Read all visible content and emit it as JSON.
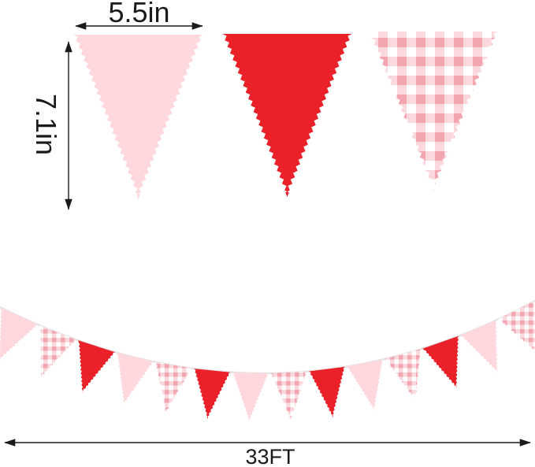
{
  "diagram": {
    "background": "#ffffff",
    "measurements": {
      "flag_width": "5.5in",
      "flag_height": "7.1in",
      "banner_length": "33FT"
    },
    "sample_flags": [
      {
        "label": "pink solid pennant",
        "style": "pink"
      },
      {
        "label": "red solid pennant",
        "style": "red"
      },
      {
        "label": "pink gingham pennant",
        "style": "gingham"
      }
    ],
    "banner": {
      "flag_count": 14,
      "sequence": [
        "pink",
        "gingham",
        "red",
        "pink",
        "gingham",
        "red",
        "pink",
        "gingham",
        "red",
        "pink",
        "gingham",
        "red",
        "pink",
        "gingham"
      ]
    },
    "colors": {
      "pink": "#ffd8dd",
      "red": "#ea2128",
      "gingham_light": "#fbd8dd",
      "gingham_dark": "#f3a6b0",
      "gingham_bg": "#ffffff",
      "string": "#e4e4e4",
      "annotation": "#1a1a1a"
    }
  }
}
